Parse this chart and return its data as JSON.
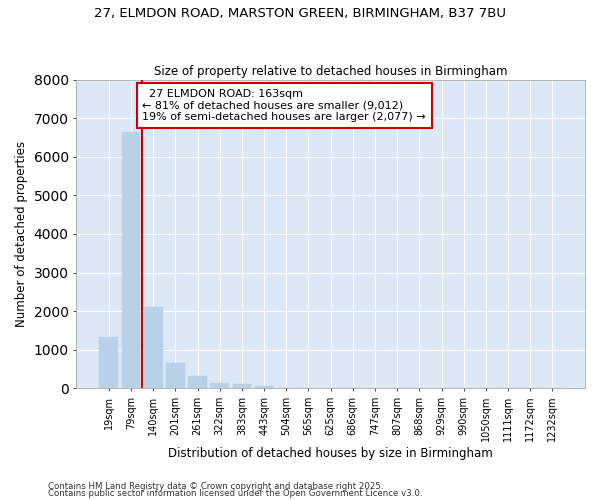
{
  "title_line1": "27, ELMDON ROAD, MARSTON GREEN, BIRMINGHAM, B37 7BU",
  "title_line2": "Size of property relative to detached houses in Birmingham",
  "xlabel": "Distribution of detached houses by size in Birmingham",
  "ylabel": "Number of detached properties",
  "annotation_title": "27 ELMDON ROAD: 163sqm",
  "annotation_line2": "← 81% of detached houses are smaller (9,012)",
  "annotation_line3": "19% of semi-detached houses are larger (2,077) →",
  "bar_labels": [
    "19sqm",
    "79sqm",
    "140sqm",
    "201sqm",
    "261sqm",
    "322sqm",
    "383sqm",
    "443sqm",
    "504sqm",
    "565sqm",
    "625sqm",
    "686sqm",
    "747sqm",
    "807sqm",
    "868sqm",
    "929sqm",
    "990sqm",
    "1050sqm",
    "1111sqm",
    "1172sqm",
    "1232sqm"
  ],
  "bar_values": [
    1320,
    6650,
    2100,
    650,
    310,
    150,
    100,
    55,
    10,
    0,
    0,
    0,
    0,
    0,
    0,
    0,
    0,
    0,
    0,
    0,
    0
  ],
  "bar_color": "#b8d0e8",
  "bar_edge_color": "#b8d0e8",
  "vline_color": "#cc0000",
  "annotation_box_color": "#cc0000",
  "background_color": "#dce8f5",
  "grid_color": "#ffffff",
  "fig_background": "#ffffff",
  "ylim": [
    0,
    8000
  ],
  "yticks": [
    0,
    1000,
    2000,
    3000,
    4000,
    5000,
    6000,
    7000,
    8000
  ],
  "footnote1": "Contains HM Land Registry data © Crown copyright and database right 2025.",
  "footnote2": "Contains public sector information licensed under the Open Government Licence v3.0."
}
